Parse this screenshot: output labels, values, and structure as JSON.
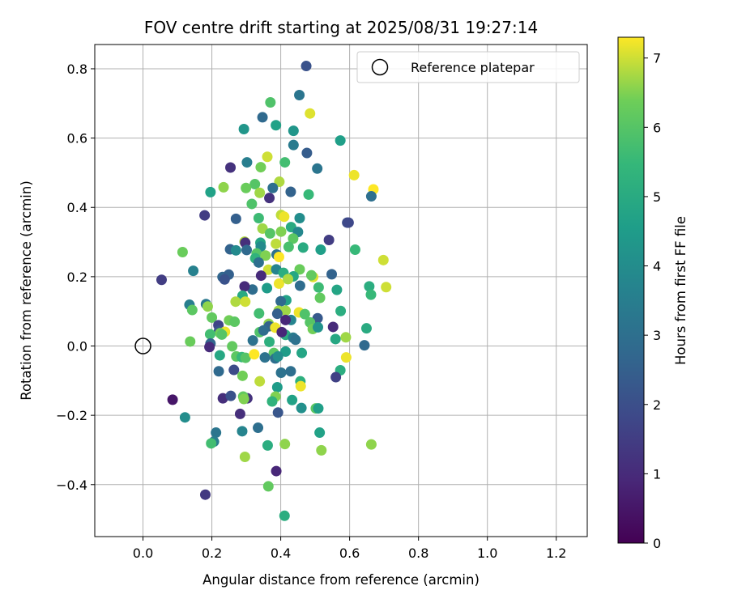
{
  "chart_data": {
    "type": "scatter",
    "title": "FOV centre drift starting at 2025/08/31 19:27:14",
    "xlabel": "Angular distance from reference (arcmin)",
    "ylabel": "Rotation from reference (arcmin)",
    "xlim": [
      -0.14,
      1.29
    ],
    "ylim": [
      -0.55,
      0.87
    ],
    "xticks": [
      0.0,
      0.2,
      0.4,
      0.6,
      0.8,
      1.0,
      1.2
    ],
    "xtick_labels": [
      "0.0",
      "0.2",
      "0.4",
      "0.6",
      "0.8",
      "1.0",
      "1.2"
    ],
    "yticks": [
      -0.4,
      -0.2,
      0.0,
      0.2,
      0.4,
      0.6,
      0.8
    ],
    "ytick_labels": [
      "−0.4",
      "−0.2",
      "0.0",
      "0.2",
      "0.4",
      "0.6",
      "0.8"
    ],
    "grid": true,
    "legend": {
      "position": "top-right",
      "entries": [
        "Reference platepar"
      ]
    },
    "reference_point": {
      "x": 0.0,
      "y": 0.0
    },
    "colorbar": {
      "label": "Hours from first FF file",
      "range": [
        0,
        7.3
      ],
      "ticks": [
        0,
        1,
        2,
        3,
        4,
        5,
        6,
        7
      ],
      "tick_labels": [
        "0",
        "1",
        "2",
        "3",
        "4",
        "5",
        "6",
        "7"
      ],
      "colormap": "viridis"
    },
    "points": [
      [
        0.474,
        0.808,
        2.1
      ],
      [
        0.454,
        0.724,
        3.2
      ],
      [
        0.485,
        0.671,
        7.1
      ],
      [
        0.37,
        0.703,
        5.9
      ],
      [
        0.347,
        0.66,
        2.8
      ],
      [
        0.386,
        0.637,
        4.7
      ],
      [
        0.293,
        0.626,
        4.3
      ],
      [
        0.437,
        0.621,
        4.3
      ],
      [
        0.573,
        0.593,
        4.6
      ],
      [
        0.437,
        0.58,
        3.4
      ],
      [
        0.476,
        0.557,
        2.4
      ],
      [
        0.361,
        0.546,
        7.0
      ],
      [
        0.302,
        0.53,
        3.5
      ],
      [
        0.412,
        0.53,
        5.7
      ],
      [
        0.506,
        0.512,
        3.2
      ],
      [
        0.254,
        0.515,
        1.2
      ],
      [
        0.342,
        0.516,
        6.4
      ],
      [
        0.613,
        0.493,
        7.2
      ],
      [
        0.396,
        0.474,
        6.8
      ],
      [
        0.325,
        0.467,
        6.0
      ],
      [
        0.669,
        0.452,
        7.3
      ],
      [
        0.234,
        0.458,
        6.6
      ],
      [
        0.299,
        0.456,
        6.3
      ],
      [
        0.377,
        0.456,
        3.0
      ],
      [
        0.429,
        0.445,
        2.6
      ],
      [
        0.196,
        0.444,
        4.7
      ],
      [
        0.481,
        0.437,
        5.5
      ],
      [
        0.339,
        0.442,
        6.7
      ],
      [
        0.663,
        0.432,
        3.0
      ],
      [
        0.367,
        0.427,
        1.2
      ],
      [
        0.316,
        0.41,
        5.9
      ],
      [
        0.179,
        0.377,
        1.5
      ],
      [
        0.401,
        0.378,
        6.9
      ],
      [
        0.41,
        0.373,
        7.2
      ],
      [
        0.455,
        0.369,
        4.0
      ],
      [
        0.27,
        0.367,
        2.5
      ],
      [
        0.336,
        0.369,
        5.6
      ],
      [
        0.593,
        0.356,
        1.9
      ],
      [
        0.597,
        0.356,
        1.8
      ],
      [
        0.43,
        0.343,
        5.0
      ],
      [
        0.347,
        0.339,
        6.7
      ],
      [
        0.401,
        0.33,
        6.5
      ],
      [
        0.369,
        0.325,
        6.0
      ],
      [
        0.45,
        0.329,
        3.8
      ],
      [
        0.436,
        0.31,
        6.1
      ],
      [
        0.295,
        0.301,
        6.8
      ],
      [
        0.297,
        0.298,
        1.1
      ],
      [
        0.341,
        0.298,
        4.8
      ],
      [
        0.386,
        0.295,
        6.9
      ],
      [
        0.423,
        0.286,
        5.8
      ],
      [
        0.465,
        0.284,
        5.0
      ],
      [
        0.342,
        0.287,
        3.9
      ],
      [
        0.301,
        0.277,
        2.8
      ],
      [
        0.253,
        0.279,
        2.6
      ],
      [
        0.27,
        0.276,
        3.9
      ],
      [
        0.516,
        0.278,
        4.6
      ],
      [
        0.616,
        0.278,
        5.5
      ],
      [
        0.54,
        0.306,
        1.5
      ],
      [
        0.115,
        0.271,
        6.3
      ],
      [
        0.33,
        0.267,
        6.0
      ],
      [
        0.388,
        0.264,
        3.1
      ],
      [
        0.356,
        0.261,
        6.5
      ],
      [
        0.395,
        0.257,
        7.3
      ],
      [
        0.326,
        0.253,
        5.3
      ],
      [
        0.336,
        0.241,
        3.0
      ],
      [
        0.698,
        0.248,
        7.0
      ],
      [
        0.364,
        0.22,
        7.0
      ],
      [
        0.455,
        0.221,
        6.3
      ],
      [
        0.146,
        0.217,
        3.6
      ],
      [
        0.387,
        0.221,
        3.7
      ],
      [
        0.408,
        0.211,
        5.1
      ],
      [
        0.343,
        0.203,
        1.0
      ],
      [
        0.437,
        0.201,
        4.9
      ],
      [
        0.548,
        0.207,
        2.6
      ],
      [
        0.494,
        0.199,
        7.1
      ],
      [
        0.489,
        0.204,
        6.2
      ],
      [
        0.231,
        0.199,
        2.7
      ],
      [
        0.249,
        0.206,
        2.5
      ],
      [
        0.054,
        0.191,
        1.5
      ],
      [
        0.237,
        0.192,
        2.1
      ],
      [
        0.395,
        0.18,
        7.2
      ],
      [
        0.421,
        0.193,
        6.8
      ],
      [
        0.456,
        0.174,
        2.9
      ],
      [
        0.36,
        0.167,
        4.5
      ],
      [
        0.318,
        0.163,
        2.9
      ],
      [
        0.295,
        0.172,
        1.0
      ],
      [
        0.706,
        0.17,
        7.0
      ],
      [
        0.657,
        0.172,
        5.1
      ],
      [
        0.51,
        0.169,
        5.6
      ],
      [
        0.563,
        0.162,
        4.8
      ],
      [
        0.662,
        0.148,
        5.5
      ],
      [
        0.289,
        0.145,
        5.0
      ],
      [
        0.416,
        0.132,
        4.7
      ],
      [
        0.514,
        0.139,
        6.2
      ],
      [
        0.269,
        0.128,
        6.8
      ],
      [
        0.297,
        0.128,
        7.0
      ],
      [
        0.4,
        0.129,
        2.8
      ],
      [
        0.135,
        0.119,
        3.5
      ],
      [
        0.183,
        0.121,
        3.3
      ],
      [
        0.188,
        0.114,
        6.6
      ],
      [
        0.574,
        0.101,
        5.1
      ],
      [
        0.143,
        0.104,
        6.1
      ],
      [
        0.337,
        0.094,
        5.7
      ],
      [
        0.394,
        0.102,
        6.7
      ],
      [
        0.414,
        0.102,
        6.7
      ],
      [
        0.453,
        0.097,
        7.2
      ],
      [
        0.47,
        0.092,
        5.9
      ],
      [
        0.39,
        0.093,
        2.5
      ],
      [
        0.2,
        0.082,
        6.2
      ],
      [
        0.507,
        0.08,
        2.3
      ],
      [
        0.25,
        0.074,
        6.4
      ],
      [
        0.266,
        0.07,
        6.1
      ],
      [
        0.365,
        0.064,
        6.6
      ],
      [
        0.485,
        0.068,
        6.0
      ],
      [
        0.43,
        0.075,
        3.7
      ],
      [
        0.414,
        0.075,
        0.9
      ],
      [
        0.219,
        0.06,
        1.7
      ],
      [
        0.366,
        0.057,
        2.6
      ],
      [
        0.384,
        0.053,
        7.2
      ],
      [
        0.493,
        0.049,
        6.4
      ],
      [
        0.508,
        0.054,
        4.2
      ],
      [
        0.552,
        0.055,
        1.0
      ],
      [
        0.649,
        0.051,
        5.0
      ],
      [
        0.221,
        0.044,
        2.1
      ],
      [
        0.238,
        0.041,
        7.2
      ],
      [
        0.224,
        0.037,
        6.4
      ],
      [
        0.229,
        0.033,
        6.0
      ],
      [
        0.414,
        0.032,
        5.1
      ],
      [
        0.339,
        0.04,
        5.9
      ],
      [
        0.403,
        0.04,
        0.9
      ],
      [
        0.35,
        0.045,
        2.9
      ],
      [
        0.195,
        0.034,
        5.7
      ],
      [
        0.436,
        0.024,
        3.4
      ],
      [
        0.443,
        0.018,
        3.1
      ],
      [
        0.367,
        0.012,
        5.2
      ],
      [
        0.319,
        0.016,
        3.1
      ],
      [
        0.559,
        0.02,
        4.9
      ],
      [
        0.589,
        0.025,
        6.7
      ],
      [
        0.196,
        0.007,
        2.7
      ],
      [
        0.643,
        0.002,
        2.8
      ],
      [
        0.137,
        0.013,
        6.3
      ],
      [
        0.193,
        -0.003,
        1.0
      ],
      [
        0.259,
        -0.001,
        6.2
      ],
      [
        0.461,
        -0.02,
        4.8
      ],
      [
        0.414,
        -0.016,
        4.5
      ],
      [
        0.38,
        -0.02,
        6.1
      ],
      [
        0.223,
        -0.027,
        4.9
      ],
      [
        0.271,
        -0.03,
        6.1
      ],
      [
        0.287,
        -0.032,
        5.5
      ],
      [
        0.298,
        -0.034,
        6.0
      ],
      [
        0.323,
        -0.024,
        7.3
      ],
      [
        0.354,
        -0.033,
        3.1
      ],
      [
        0.384,
        -0.036,
        3.0
      ],
      [
        0.392,
        -0.03,
        4.0
      ],
      [
        0.59,
        -0.033,
        7.2
      ],
      [
        0.264,
        -0.069,
        1.9
      ],
      [
        0.22,
        -0.073,
        2.8
      ],
      [
        0.401,
        -0.077,
        3.1
      ],
      [
        0.429,
        -0.073,
        3.0
      ],
      [
        0.573,
        -0.07,
        5.1
      ],
      [
        0.289,
        -0.086,
        6.4
      ],
      [
        0.56,
        -0.09,
        1.6
      ],
      [
        0.457,
        -0.102,
        5.2
      ],
      [
        0.339,
        -0.102,
        6.9
      ],
      [
        0.39,
        -0.119,
        4.5
      ],
      [
        0.458,
        -0.116,
        7.2
      ],
      [
        0.385,
        -0.146,
        6.5
      ],
      [
        0.086,
        -0.155,
        0.5
      ],
      [
        0.232,
        -0.151,
        1.1
      ],
      [
        0.255,
        -0.144,
        2.1
      ],
      [
        0.303,
        -0.151,
        1.2
      ],
      [
        0.291,
        -0.146,
        6.2
      ],
      [
        0.293,
        -0.153,
        6.5
      ],
      [
        0.375,
        -0.16,
        5.3
      ],
      [
        0.433,
        -0.156,
        4.7
      ],
      [
        0.46,
        -0.179,
        4.1
      ],
      [
        0.502,
        -0.18,
        6.1
      ],
      [
        0.509,
        -0.18,
        4.6
      ],
      [
        0.392,
        -0.192,
        2.2
      ],
      [
        0.282,
        -0.196,
        1.1
      ],
      [
        0.122,
        -0.206,
        4.0
      ],
      [
        0.334,
        -0.236,
        3.0
      ],
      [
        0.288,
        -0.246,
        3.7
      ],
      [
        0.212,
        -0.25,
        3.2
      ],
      [
        0.513,
        -0.25,
        4.7
      ],
      [
        0.206,
        -0.276,
        3.5
      ],
      [
        0.198,
        -0.281,
        5.7
      ],
      [
        0.362,
        -0.287,
        5.1
      ],
      [
        0.412,
        -0.283,
        6.6
      ],
      [
        0.663,
        -0.284,
        6.6
      ],
      [
        0.518,
        -0.301,
        6.6
      ],
      [
        0.296,
        -0.32,
        6.7
      ],
      [
        0.387,
        -0.361,
        0.9
      ],
      [
        0.364,
        -0.405,
        6.2
      ],
      [
        0.181,
        -0.429,
        1.4
      ],
      [
        0.411,
        -0.49,
        5.1
      ]
    ]
  }
}
